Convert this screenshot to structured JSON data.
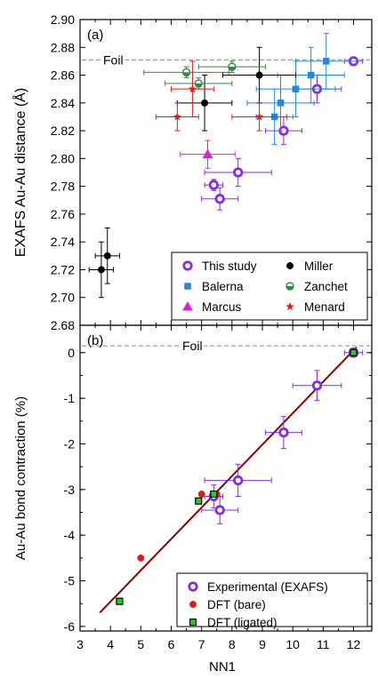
{
  "figure": {
    "xlabel": "NN1"
  },
  "chart_data": [
    {
      "panel_label": "(a)",
      "type": "scatter",
      "ylabel": "EXAFS Au-Au distance (Å)",
      "xlim": [
        3,
        12.6
      ],
      "ylim": [
        2.68,
        2.9
      ],
      "x_ticks": [
        3,
        4,
        5,
        6,
        7,
        8,
        9,
        10,
        11,
        12
      ],
      "y_ticks": [
        2.68,
        2.7,
        2.72,
        2.74,
        2.76,
        2.78,
        2.8,
        2.82,
        2.84,
        2.86,
        2.88,
        2.9
      ],
      "reference_line": {
        "label": "Foil",
        "y": 2.871
      },
      "legend": {
        "position": "bottom-right",
        "columns": 2
      },
      "series": [
        {
          "name": "This study",
          "marker": "open-circle",
          "color": "#8a2be2",
          "points": [
            {
              "x": 7.4,
              "y": 2.781,
              "xerr": 0.3,
              "yerr": 0.004
            },
            {
              "x": 7.6,
              "y": 2.771,
              "xerr": 0.6,
              "yerr": 0.008
            },
            {
              "x": 8.2,
              "y": 2.79,
              "xerr": 1.1,
              "yerr": 0.01
            },
            {
              "x": 9.7,
              "y": 2.82,
              "xerr": 0.6,
              "yerr": 0.01
            },
            {
              "x": 10.8,
              "y": 2.85,
              "xerr": 0.8,
              "yerr": 0.01
            },
            {
              "x": 12.0,
              "y": 2.87,
              "xerr": 0.3,
              "yerr": 0.003
            }
          ]
        },
        {
          "name": "Balerna",
          "marker": "square",
          "color": "#1e8ae6",
          "points": [
            {
              "x": 9.4,
              "y": 2.83,
              "xerr": 0.6,
              "yerr": 0.02
            },
            {
              "x": 9.6,
              "y": 2.84,
              "xerr": 1.1,
              "yerr": 0.02
            },
            {
              "x": 10.1,
              "y": 2.85,
              "xerr": 1.3,
              "yerr": 0.02
            },
            {
              "x": 10.6,
              "y": 2.86,
              "xerr": 1.1,
              "yerr": 0.02
            },
            {
              "x": 11.1,
              "y": 2.87,
              "xerr": 1.0,
              "yerr": 0.02
            }
          ]
        },
        {
          "name": "Marcus",
          "marker": "triangle",
          "color": "#e020e0",
          "points": [
            {
              "x": 7.2,
              "y": 2.803,
              "xerr": 0.9,
              "yerr": 0.01
            }
          ]
        },
        {
          "name": "Miller",
          "marker": "filled-circle",
          "color": "#000000",
          "points": [
            {
              "x": 3.7,
              "y": 2.72,
              "xerr": 0.4,
              "yerr": 0.02
            },
            {
              "x": 3.9,
              "y": 2.73,
              "xerr": 0.4,
              "yerr": 0.02
            },
            {
              "x": 7.1,
              "y": 2.84,
              "xerr": 0.9,
              "yerr": 0.02
            },
            {
              "x": 8.9,
              "y": 2.86,
              "xerr": 1.2,
              "yerr": 0.02
            }
          ]
        },
        {
          "name": "Zanchet",
          "marker": "half-circle",
          "color": "#2e8b3d",
          "points": [
            {
              "x": 6.5,
              "y": 2.862,
              "xerr": 1.4,
              "yerr": 0.004
            },
            {
              "x": 6.9,
              "y": 2.854,
              "xerr": 1.1,
              "yerr": 0.004
            },
            {
              "x": 8.0,
              "y": 2.866,
              "xerr": 1.1,
              "yerr": 0.004
            }
          ]
        },
        {
          "name": "Menard",
          "marker": "star",
          "color": "#e01b1b",
          "points": [
            {
              "x": 6.2,
              "y": 2.83,
              "xerr": 0.7,
              "yerr": 0.01
            },
            {
              "x": 6.7,
              "y": 2.85,
              "xerr": 0.7,
              "yerr": 0.02
            },
            {
              "x": 8.9,
              "y": 2.83,
              "xerr": 0.9,
              "yerr": 0.01
            }
          ]
        }
      ]
    },
    {
      "panel_label": "(b)",
      "type": "scatter",
      "ylabel": "Au-Au bond contraction (%)",
      "xlim": [
        3,
        12.6
      ],
      "ylim": [
        -6.1,
        0.6
      ],
      "x_ticks": [
        3,
        4,
        5,
        6,
        7,
        8,
        9,
        10,
        11,
        12
      ],
      "y_ticks": [
        0,
        -1,
        -2,
        -3,
        -4,
        -5,
        -6
      ],
      "reference_line": {
        "label": "Foil",
        "y": 0.15
      },
      "fit_line": {
        "color": "#8b0000",
        "x": [
          3.65,
          12.1
        ],
        "y": [
          -5.7,
          0.12
        ]
      },
      "legend": {
        "position": "bottom-right",
        "columns": 1
      },
      "series": [
        {
          "name": "Experimental (EXAFS)",
          "marker": "open-circle",
          "color": "#8a2be2",
          "points": [
            {
              "x": 7.4,
              "y": -3.15,
              "xerr": 0.3,
              "yerr": 0.25
            },
            {
              "x": 7.6,
              "y": -3.45,
              "xerr": 0.6,
              "yerr": 0.3
            },
            {
              "x": 8.2,
              "y": -2.8,
              "xerr": 1.1,
              "yerr": 0.35
            },
            {
              "x": 9.7,
              "y": -1.75,
              "xerr": 0.6,
              "yerr": 0.35
            },
            {
              "x": 10.8,
              "y": -0.72,
              "xerr": 0.8,
              "yerr": 0.33
            },
            {
              "x": 12.0,
              "y": 0.0,
              "xerr": 0.3,
              "yerr": 0.1
            }
          ]
        },
        {
          "name": "DFT (bare)",
          "marker": "filled-circle",
          "color": "#e01b1b",
          "points": [
            {
              "x": 5.0,
              "y": -4.5
            },
            {
              "x": 7.0,
              "y": -3.1
            },
            {
              "x": 7.5,
              "y": -3.1
            }
          ]
        },
        {
          "name": "DFT (ligated)",
          "marker": "square",
          "color": "#22cc22",
          "points": [
            {
              "x": 4.3,
              "y": -5.45
            },
            {
              "x": 6.9,
              "y": -3.25
            },
            {
              "x": 7.4,
              "y": -3.1
            },
            {
              "x": 12.0,
              "y": 0.0
            }
          ]
        }
      ]
    }
  ]
}
